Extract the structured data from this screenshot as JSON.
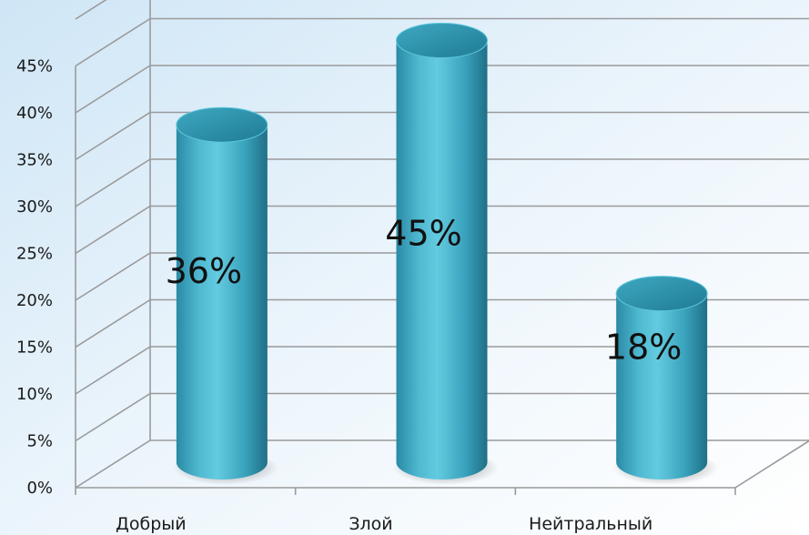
{
  "chart_data": {
    "type": "bar",
    "style": "3d-cylinder",
    "categories": [
      "Добрый",
      "Злой",
      "Нейтральный"
    ],
    "values": [
      36,
      45,
      18
    ],
    "value_labels": [
      "36%",
      "45%",
      "18%"
    ],
    "y_ticks": [
      "0%",
      "5%",
      "10%",
      "15%",
      "20%",
      "25%",
      "30%",
      "35%",
      "40%",
      "45%"
    ],
    "ylim": [
      0,
      45
    ],
    "grid": true,
    "legend": "none",
    "title": "",
    "xlabel": "",
    "ylabel": "",
    "colors": {
      "bar_light": "#5cc6dc",
      "bar_mid": "#3aa3bd",
      "bar_dark": "#1f6f86",
      "bar_top": "#2d93ad",
      "background_left": "#d9ecf8",
      "background_right": "#ffffff",
      "grid": "#9a9a9a"
    }
  }
}
